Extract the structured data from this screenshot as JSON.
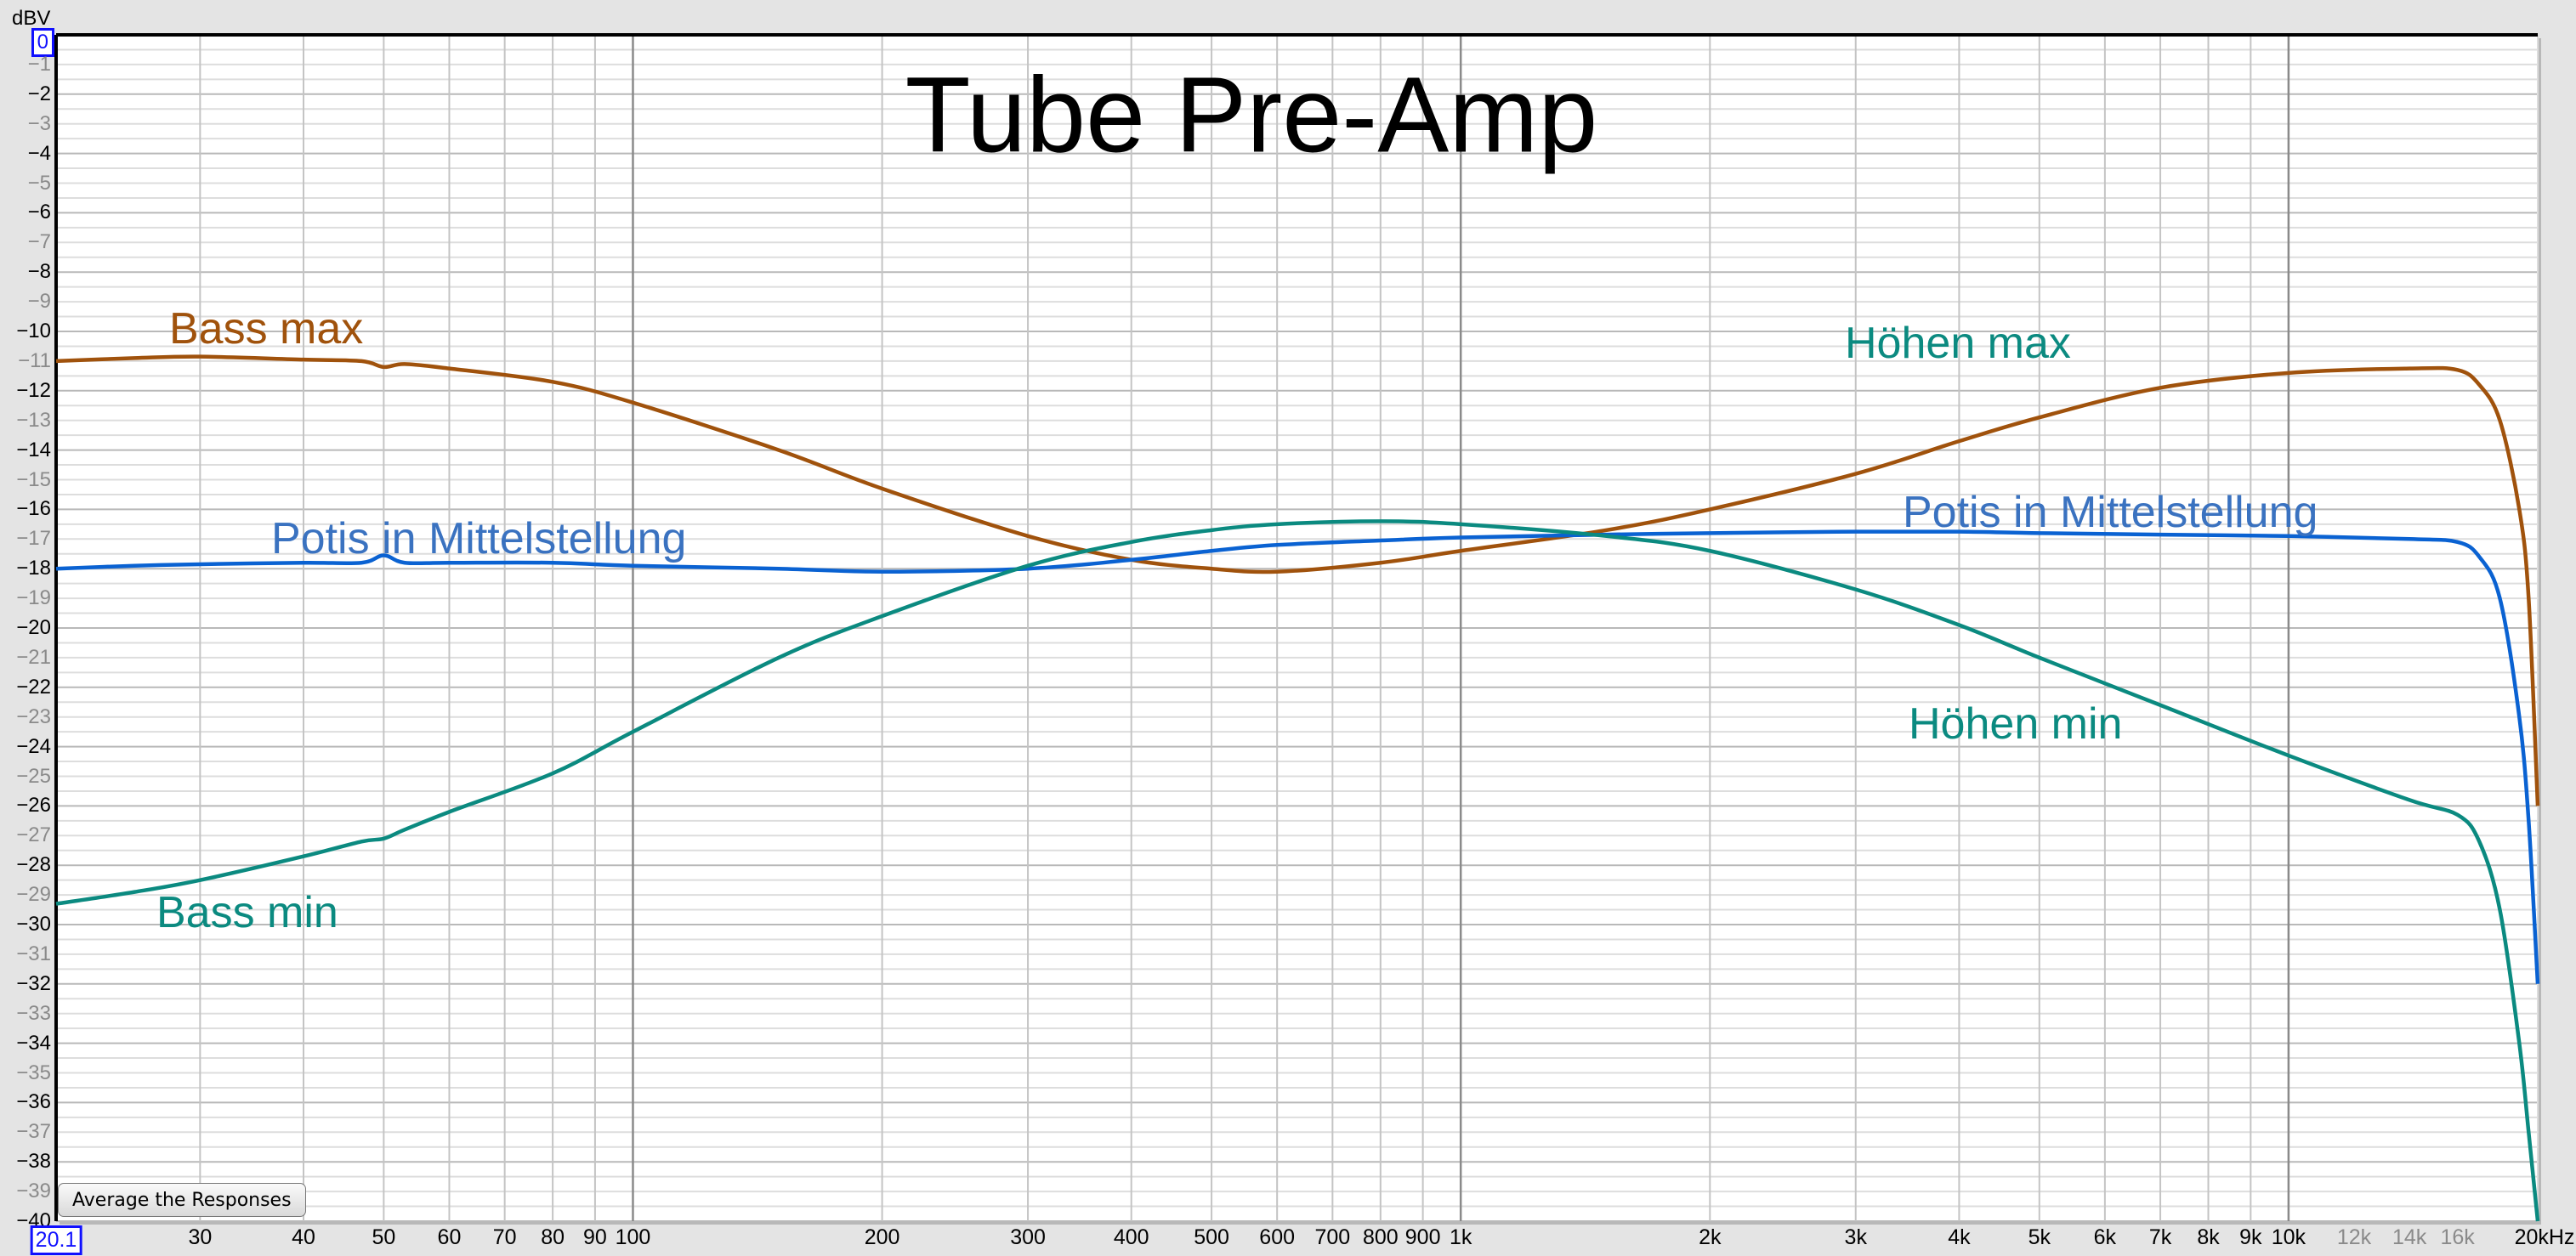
{
  "chart_data": {
    "type": "line",
    "title": "Tube Pre-Amp",
    "ylabel": "dBV",
    "xscale": "log",
    "xlim": [
      20.1,
      20000
    ],
    "ylim": [
      -40,
      0
    ],
    "grid": true,
    "x_ticks": [
      {
        "value": 20.1,
        "label": "20.1",
        "style": "boxed"
      },
      {
        "value": 30,
        "label": "30"
      },
      {
        "value": 40,
        "label": "40"
      },
      {
        "value": 50,
        "label": "50"
      },
      {
        "value": 60,
        "label": "60"
      },
      {
        "value": 70,
        "label": "70"
      },
      {
        "value": 80,
        "label": "80"
      },
      {
        "value": 90,
        "label": "90"
      },
      {
        "value": 100,
        "label": "100"
      },
      {
        "value": 200,
        "label": "200"
      },
      {
        "value": 300,
        "label": "300"
      },
      {
        "value": 400,
        "label": "400"
      },
      {
        "value": 500,
        "label": "500"
      },
      {
        "value": 600,
        "label": "600"
      },
      {
        "value": 700,
        "label": "700"
      },
      {
        "value": 800,
        "label": "800"
      },
      {
        "value": 900,
        "label": "900"
      },
      {
        "value": 1000,
        "label": "1k"
      },
      {
        "value": 2000,
        "label": "2k"
      },
      {
        "value": 3000,
        "label": "3k"
      },
      {
        "value": 4000,
        "label": "4k"
      },
      {
        "value": 5000,
        "label": "5k"
      },
      {
        "value": 6000,
        "label": "6k"
      },
      {
        "value": 7000,
        "label": "7k"
      },
      {
        "value": 8000,
        "label": "8k"
      },
      {
        "value": 9000,
        "label": "9k"
      },
      {
        "value": 10000,
        "label": "10k"
      },
      {
        "value": 12000,
        "label": "12k",
        "style": "minor"
      },
      {
        "value": 14000,
        "label": "14k",
        "style": "minor"
      },
      {
        "value": 16000,
        "label": "16k",
        "style": "minor"
      },
      {
        "value": 20000,
        "label": "20kHz"
      }
    ],
    "y_ticks": [
      0,
      -1,
      -2,
      -3,
      -4,
      -5,
      -6,
      -7,
      -8,
      -9,
      -10,
      -11,
      -12,
      -13,
      -14,
      -15,
      -16,
      -17,
      -18,
      -19,
      -20,
      -21,
      -22,
      -23,
      -24,
      -25,
      -26,
      -27,
      -28,
      -29,
      -30,
      -31,
      -32,
      -33,
      -34,
      -35,
      -36,
      -37,
      -38,
      -39,
      -40
    ],
    "x": [
      20.1,
      25,
      30,
      40,
      47,
      50,
      53,
      60,
      80,
      100,
      150,
      200,
      300,
      400,
      500,
      600,
      800,
      1000,
      1500,
      2000,
      3000,
      4000,
      5000,
      7000,
      10000,
      14000,
      16000,
      17000,
      18000,
      19000,
      19500,
      20000
    ],
    "series": [
      {
        "color": "#a0520c",
        "values": [
          -11.0,
          -10.9,
          -10.85,
          -10.95,
          -11.0,
          -11.2,
          -11.1,
          -11.25,
          -11.7,
          -12.4,
          -14.0,
          -15.3,
          -16.9,
          -17.7,
          -18.0,
          -18.1,
          -17.8,
          -17.4,
          -16.7,
          -16.0,
          -14.8,
          -13.7,
          -12.9,
          -11.9,
          -11.4,
          -11.25,
          -11.3,
          -11.8,
          -13.0,
          -16.0,
          -19.0,
          -26.0
        ]
      },
      {
        "color": "#0a62d2",
        "values": [
          -18.0,
          -17.9,
          -17.85,
          -17.8,
          -17.8,
          -17.55,
          -17.8,
          -17.8,
          -17.8,
          -17.9,
          -18.0,
          -18.1,
          -18.0,
          -17.7,
          -17.4,
          -17.2,
          -17.05,
          -16.95,
          -16.85,
          -16.8,
          -16.75,
          -16.75,
          -16.8,
          -16.85,
          -16.9,
          -17.0,
          -17.1,
          -17.6,
          -19.0,
          -23.0,
          -26.5,
          -32.0
        ]
      },
      {
        "color": "#0b8a80",
        "values": [
          -29.3,
          -28.9,
          -28.5,
          -27.7,
          -27.2,
          -27.1,
          -26.8,
          -26.2,
          -24.9,
          -23.5,
          -21.0,
          -19.6,
          -17.9,
          -17.1,
          -16.7,
          -16.5,
          -16.4,
          -16.5,
          -16.9,
          -17.4,
          -18.7,
          -19.9,
          -21.0,
          -22.6,
          -24.3,
          -25.8,
          -26.3,
          -27.2,
          -29.5,
          -34.0,
          -37.0,
          -40.0
        ]
      }
    ],
    "annotations": [
      {
        "text": "Bass max",
        "color": "#a0520c"
      },
      {
        "text": "Potis in Mittelstellung",
        "color": "#3a72c0"
      },
      {
        "text": "Höhen max",
        "color": "#0b8a80"
      },
      {
        "text": "Potis in Mittelstellung",
        "color": "#3a72c0"
      },
      {
        "text": "Höhen min",
        "color": "#0b8a80"
      },
      {
        "text": "Bass min",
        "color": "#0b8a80"
      }
    ]
  },
  "controls": {
    "average_button": "Average the Responses"
  }
}
